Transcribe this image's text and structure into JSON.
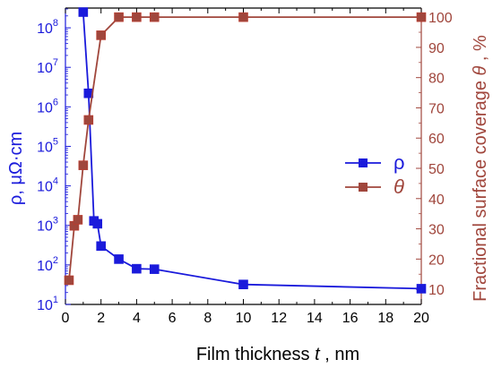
{
  "chart_data": {
    "type": "line",
    "xlabel": "Film thickness",
    "xlabel_var": "t",
    "xlabel_unit": ", nm",
    "ylabel_left": "ρ, μΩ·cm",
    "ylabel_right_prefix": "Fractional surface coverage ",
    "ylabel_right_var": "θ",
    "ylabel_right_unit": ", %",
    "xlim": [
      0,
      20
    ],
    "ylim_left": [
      10,
      316228000
    ],
    "ylim_right": [
      5,
      103
    ],
    "left_scale": "log",
    "xticks": [
      0,
      2,
      4,
      6,
      8,
      10,
      12,
      14,
      16,
      18,
      20
    ],
    "yticks_left": [
      {
        "value": 10,
        "base": "10",
        "exp": "1"
      },
      {
        "value": 100,
        "base": "10",
        "exp": "2"
      },
      {
        "value": 1000,
        "base": "10",
        "exp": "3"
      },
      {
        "value": 10000,
        "base": "10",
        "exp": "4"
      },
      {
        "value": 100000,
        "base": "10",
        "exp": "5"
      },
      {
        "value": 1000000,
        "base": "10",
        "exp": "6"
      },
      {
        "value": 10000000,
        "base": "10",
        "exp": "7"
      },
      {
        "value": 100000000,
        "base": "10",
        "exp": "8"
      }
    ],
    "yticks_right": [
      10,
      20,
      30,
      40,
      50,
      60,
      70,
      80,
      90,
      100
    ],
    "legend_position": "right-middle",
    "series": [
      {
        "name": "ρ",
        "axis": "left",
        "color": "#1a1adb",
        "x": [
          1.0,
          1.3,
          1.6,
          1.8,
          2.0,
          3.0,
          4.0,
          5.0,
          10.0,
          20.0
        ],
        "y": [
          250000000,
          2200000,
          1300,
          1100,
          300,
          140,
          80,
          78,
          32,
          25
        ]
      },
      {
        "name": "θ",
        "axis": "right",
        "color": "#a0463c",
        "x": [
          0.2,
          0.5,
          0.7,
          1.0,
          1.3,
          2.0,
          3.0,
          4.0,
          5.0,
          10.0,
          20.0
        ],
        "y": [
          13,
          31,
          33,
          51,
          66,
          94,
          100,
          100,
          100,
          100,
          100
        ]
      }
    ]
  }
}
